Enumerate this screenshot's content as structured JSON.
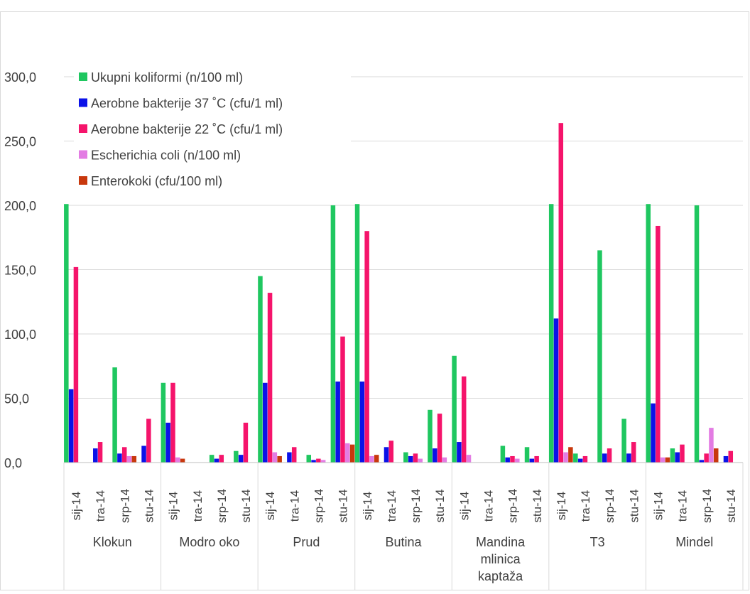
{
  "chart_data": {
    "type": "bar",
    "title": "",
    "xlabel": "",
    "ylabel": "",
    "ylim": [
      0,
      300
    ],
    "y_ticks": [
      "0,0",
      "50,0",
      "100,0",
      "150,0",
      "200,0",
      "250,0",
      "300,0"
    ],
    "grid": "horizontal",
    "legend_position": "top-left",
    "groups": [
      {
        "name": "Klokun",
        "name_lines": [
          "Klokun"
        ],
        "months": [
          "sij-14",
          "tra-14",
          "srp-14",
          "stu-14"
        ]
      },
      {
        "name": "Modro oko",
        "name_lines": [
          "Modro oko"
        ],
        "months": [
          "sij-14",
          "tra-14",
          "srp-14",
          "stu-14"
        ]
      },
      {
        "name": "Prud",
        "name_lines": [
          "Prud"
        ],
        "months": [
          "sij-14",
          "tra-14",
          "srp-14",
          "stu-14"
        ]
      },
      {
        "name": "Butina",
        "name_lines": [
          "Butina"
        ],
        "months": [
          "sij-14",
          "tra-14",
          "srp-14",
          "stu-14"
        ]
      },
      {
        "name": "Mandina mlinica kaptaža",
        "name_lines": [
          "Mandina",
          "mlinica",
          "kaptaža"
        ],
        "months": [
          "sij-14",
          "tra-14",
          "srp-14",
          "stu-14"
        ]
      },
      {
        "name": "T3",
        "name_lines": [
          "T3"
        ],
        "months": [
          "sij-14",
          "tra-14",
          "srp-14",
          "stu-14"
        ]
      },
      {
        "name": "Mindel",
        "name_lines": [
          "Mindel"
        ],
        "months": [
          "sij-14",
          "tra-14",
          "srp-14",
          "stu-14"
        ]
      }
    ],
    "series": [
      {
        "name": "Ukupni koliformi (n/100 ml)",
        "color": "#1fc760",
        "values": [
          201,
          0,
          74,
          0,
          62,
          0,
          6,
          9,
          145,
          0,
          6,
          200,
          201,
          0,
          8,
          41,
          83,
          0,
          13,
          12,
          201,
          7,
          165,
          34,
          201,
          11,
          200,
          0
        ]
      },
      {
        "name": "Aerobne bakterije 37 ˚C (cfu/1 ml)",
        "color": "#0b12e8",
        "values": [
          57,
          11,
          7,
          13,
          31,
          0,
          3,
          6,
          62,
          8,
          2,
          63,
          63,
          12,
          5,
          11,
          16,
          0,
          4,
          3,
          112,
          3,
          7,
          7,
          46,
          8,
          2,
          5
        ]
      },
      {
        "name": "Aerobne bakterije 22 ˚C (cfu/1 ml)",
        "color": "#f5146b",
        "values": [
          152,
          16,
          12,
          34,
          62,
          0,
          6,
          31,
          132,
          12,
          3,
          98,
          180,
          17,
          7,
          38,
          67,
          0,
          5,
          5,
          264,
          5,
          11,
          16,
          184,
          14,
          7,
          9
        ]
      },
      {
        "name": "Escherichia coli (n/100 ml)",
        "color": "#e37ce3",
        "values": [
          0,
          0,
          5,
          0,
          4,
          0,
          0,
          0,
          8,
          0,
          2,
          15,
          5,
          0,
          3,
          4,
          6,
          0,
          3,
          0,
          8,
          0,
          0,
          0,
          4,
          0,
          27,
          0
        ]
      },
      {
        "name": "Enterokoki (cfu/100 ml)",
        "color": "#c8380d",
        "values": [
          0,
          0,
          5,
          0,
          3,
          0,
          0,
          0,
          5,
          0,
          0,
          14,
          6,
          0,
          0,
          0,
          0,
          0,
          0,
          0,
          12,
          0,
          0,
          0,
          4,
          0,
          11,
          0
        ]
      }
    ]
  }
}
